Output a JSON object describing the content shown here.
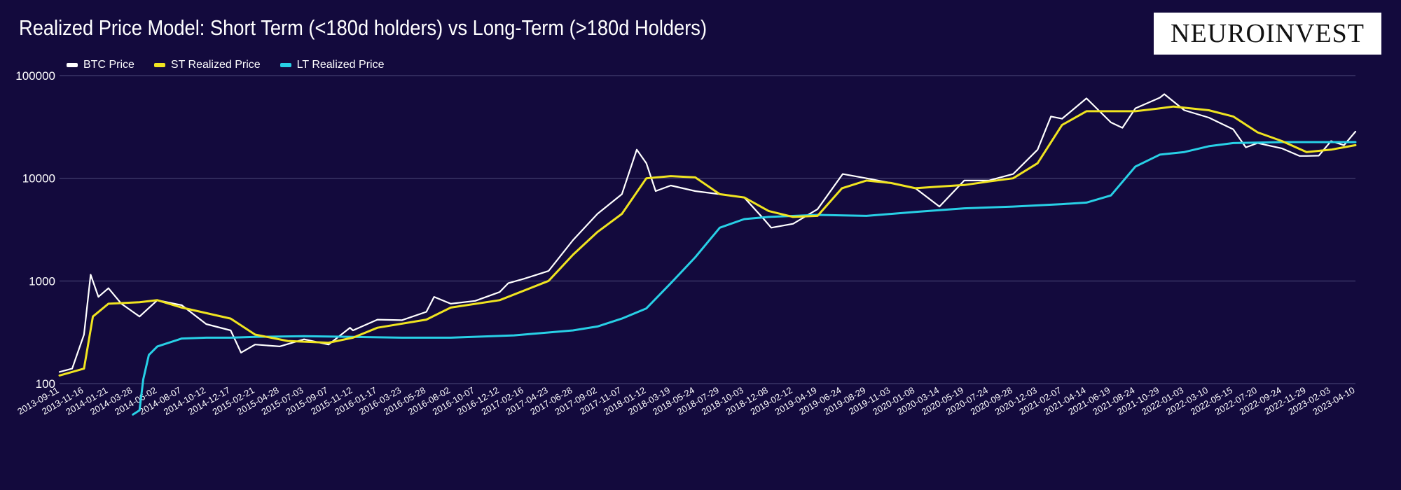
{
  "chart_data": {
    "type": "line",
    "title": "Realized Price Model: Short Term (<180d holders) vs Long-Term (>180d Holders)",
    "y_scale": "log",
    "ylim": [
      50,
      100000
    ],
    "y_ticks": [
      "100000",
      "10000",
      "1000",
      "100"
    ],
    "y_tick_values": [
      100000,
      10000,
      1000,
      100
    ],
    "x_range": [
      "2013-09-11",
      "2023-04-10"
    ],
    "x_ticks": [
      "2013-09-11",
      "2013-11-16",
      "2014-01-21",
      "2014-03-28",
      "2014-06-02",
      "2014-08-07",
      "2014-10-12",
      "2014-12-17",
      "2015-02-21",
      "2015-04-28",
      "2015-07-03",
      "2015-09-07",
      "2015-11-12",
      "2016-01-17",
      "2016-03-23",
      "2016-05-28",
      "2016-08-02",
      "2016-10-07",
      "2016-12-12",
      "2017-02-16",
      "2017-04-23",
      "2017-06-28",
      "2017-09-02",
      "2017-11-07",
      "2018-01-12",
      "2018-03-19",
      "2018-05-24",
      "2018-07-29",
      "2018-10-03",
      "2018-12-08",
      "2019-02-12",
      "2019-04-19",
      "2019-06-24",
      "2019-08-29",
      "2019-11-03",
      "2020-01-08",
      "2020-03-14",
      "2020-05-19",
      "2020-07-24",
      "2020-09-28",
      "2020-12-03",
      "2021-02-07",
      "2021-04-14",
      "2021-06-19",
      "2021-08-24",
      "2021-10-29",
      "2022-01-03",
      "2022-03-10",
      "2022-05-15",
      "2022-07-20",
      "2022-09-24",
      "2022-11-29",
      "2023-02-03",
      "2023-04-10"
    ],
    "legend": "top-left",
    "series": [
      {
        "name": "BTC Price",
        "color": "#ffffff",
        "x": [
          "2013-09-11",
          "2013-10-15",
          "2013-11-16",
          "2013-12-04",
          "2013-12-25",
          "2014-01-21",
          "2014-02-25",
          "2014-03-28",
          "2014-04-15",
          "2014-06-02",
          "2014-08-07",
          "2014-10-12",
          "2014-12-17",
          "2015-01-14",
          "2015-02-21",
          "2015-04-28",
          "2015-07-03",
          "2015-09-07",
          "2015-11-04",
          "2015-11-12",
          "2016-01-17",
          "2016-03-23",
          "2016-05-28",
          "2016-06-18",
          "2016-08-02",
          "2016-10-07",
          "2016-12-12",
          "2017-01-04",
          "2017-02-16",
          "2017-04-23",
          "2017-06-28",
          "2017-09-02",
          "2017-11-07",
          "2017-12-17",
          "2018-01-12",
          "2018-02-06",
          "2018-03-19",
          "2018-05-24",
          "2018-07-29",
          "2018-10-03",
          "2018-11-25",
          "2018-12-15",
          "2019-02-12",
          "2019-04-19",
          "2019-06-26",
          "2019-08-29",
          "2019-11-03",
          "2020-01-08",
          "2020-03-13",
          "2020-05-19",
          "2020-07-24",
          "2020-09-28",
          "2020-12-03",
          "2021-01-08",
          "2021-02-07",
          "2021-04-14",
          "2021-06-19",
          "2021-07-20",
          "2021-08-24",
          "2021-10-29",
          "2021-11-10",
          "2022-01-03",
          "2022-03-10",
          "2022-05-15",
          "2022-06-18",
          "2022-07-20",
          "2022-09-24",
          "2022-11-10",
          "2022-11-29",
          "2023-01-01",
          "2023-02-03",
          "2023-03-10",
          "2023-04-10"
        ],
        "values": [
          130,
          140,
          300,
          1150,
          700,
          850,
          600,
          500,
          450,
          650,
          580,
          380,
          330,
          200,
          240,
          230,
          270,
          240,
          350,
          330,
          420,
          415,
          500,
          700,
          600,
          640,
          780,
          950,
          1050,
          1250,
          2500,
          4500,
          7000,
          19000,
          14000,
          7500,
          8500,
          7500,
          7000,
          6500,
          4000,
          3300,
          3600,
          5000,
          11000,
          10000,
          9000,
          8000,
          5300,
          9500,
          9500,
          11000,
          19000,
          40000,
          38000,
          60000,
          35000,
          31000,
          48000,
          61000,
          66000,
          46000,
          39000,
          30000,
          20000,
          22000,
          19500,
          16500,
          16500,
          16600,
          23000,
          21000,
          28500
        ]
      },
      {
        "name": "ST Realized Price",
        "color": "#f0e420",
        "x": [
          "2013-09-11",
          "2013-11-16",
          "2013-12-10",
          "2014-01-21",
          "2014-04-15",
          "2014-06-02",
          "2014-08-07",
          "2014-12-17",
          "2015-02-21",
          "2015-05-20",
          "2015-09-07",
          "2015-11-12",
          "2016-01-17",
          "2016-05-28",
          "2016-08-02",
          "2016-12-12",
          "2017-04-23",
          "2017-06-28",
          "2017-09-02",
          "2017-11-07",
          "2018-01-12",
          "2018-03-19",
          "2018-05-24",
          "2018-07-29",
          "2018-10-03",
          "2018-12-08",
          "2019-02-12",
          "2019-04-19",
          "2019-06-24",
          "2019-08-29",
          "2019-11-03",
          "2020-01-08",
          "2020-03-14",
          "2020-05-19",
          "2020-07-24",
          "2020-09-28",
          "2020-12-03",
          "2021-02-07",
          "2021-04-14",
          "2021-06-19",
          "2021-08-24",
          "2021-10-29",
          "2021-12-05",
          "2022-03-10",
          "2022-05-15",
          "2022-07-20",
          "2022-09-24",
          "2022-11-29",
          "2023-02-03",
          "2023-04-10"
        ],
        "values": [
          120,
          140,
          450,
          600,
          620,
          650,
          550,
          430,
          300,
          260,
          250,
          280,
          350,
          420,
          550,
          650,
          1000,
          1800,
          3000,
          4500,
          10000,
          10500,
          10200,
          7000,
          6500,
          4800,
          4200,
          4300,
          8000,
          9500,
          9000,
          8000,
          8300,
          8600,
          9300,
          10000,
          14000,
          33000,
          45000,
          45000,
          45000,
          48000,
          50000,
          46000,
          40000,
          28000,
          23000,
          18000,
          19000,
          21000
        ]
      },
      {
        "name": "LT Realized Price",
        "color": "#28d0e6",
        "x": [
          "2014-03-28",
          "2014-04-15",
          "2014-04-25",
          "2014-05-10",
          "2014-06-02",
          "2014-08-07",
          "2014-10-12",
          "2014-12-17",
          "2015-02-21",
          "2015-07-03",
          "2015-11-12",
          "2016-03-23",
          "2016-08-02",
          "2017-01-20",
          "2017-06-28",
          "2017-09-02",
          "2017-11-07",
          "2018-01-12",
          "2018-03-19",
          "2018-05-24",
          "2018-07-29",
          "2018-10-03",
          "2018-12-08",
          "2019-04-19",
          "2019-08-29",
          "2020-01-08",
          "2020-05-19",
          "2020-09-28",
          "2021-02-07",
          "2021-04-14",
          "2021-06-19",
          "2021-08-24",
          "2021-10-29",
          "2022-01-03",
          "2022-03-10",
          "2022-05-15",
          "2022-09-24",
          "2023-02-03",
          "2023-04-10"
        ],
        "values": [
          50,
          55,
          110,
          190,
          230,
          275,
          280,
          280,
          285,
          290,
          285,
          280,
          280,
          295,
          330,
          360,
          430,
          540,
          950,
          1700,
          3300,
          4000,
          4200,
          4400,
          4300,
          4700,
          5100,
          5300,
          5600,
          5800,
          6800,
          13000,
          17000,
          18000,
          20500,
          22000,
          22500,
          22500,
          22500
        ]
      }
    ]
  },
  "logo_text": "NEUROINVEST"
}
